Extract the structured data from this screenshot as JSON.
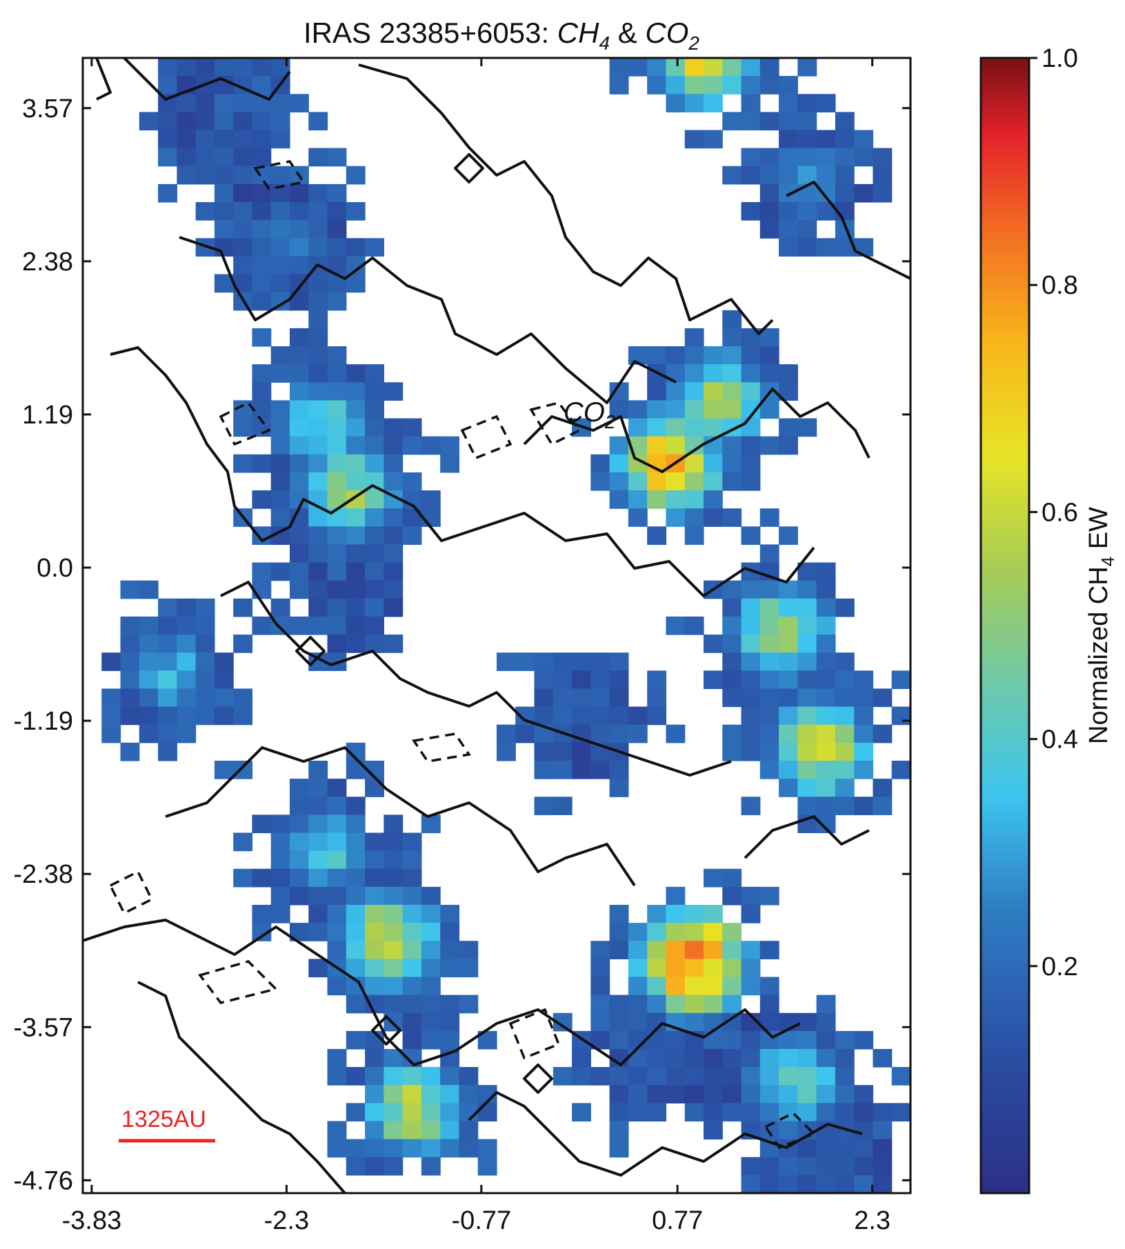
{
  "chart_data": {
    "type": "heatmap",
    "title_prefix": "IRAS 23385+6053: ",
    "title_species_1": "CH",
    "title_sub_1": "4",
    "title_join": " & ",
    "title_species_2": "CO",
    "title_sub_2": "2",
    "x_ticks": [
      "-3.83",
      "-2.3",
      "-0.77",
      "0.77",
      "2.3"
    ],
    "y_ticks": [
      "3.57",
      "2.38",
      "1.19",
      "0.0",
      "-1.19",
      "-2.38",
      "-3.57",
      "-4.76"
    ],
    "x_tick_values": [
      -3.83,
      -2.3,
      -0.77,
      0.77,
      2.3
    ],
    "y_tick_values": [
      3.57,
      2.38,
      1.19,
      0.0,
      -1.19,
      -2.38,
      -3.57,
      -4.76
    ],
    "xlim": [
      -3.9,
      2.6
    ],
    "ylim": [
      -4.86,
      3.96
    ],
    "colorbar": {
      "label_prefix": "Normalized CH",
      "label_sub": "4",
      "label_suffix": " EW",
      "ticks": [
        "0.2",
        "0.4",
        "0.6",
        "0.8",
        "1.0"
      ],
      "tick_values": [
        0.2,
        0.4,
        0.6,
        0.8,
        1.0
      ],
      "range": [
        0.0,
        1.0
      ],
      "colormap": "jet"
    },
    "contour_label_species": "CO",
    "contour_label_sub": "2",
    "contour_label_position": [
      0.2,
      1.19
    ],
    "scale_bar": {
      "label": "1325AU",
      "color": "#ee2222"
    },
    "grid": false,
    "legend": "none",
    "clusters": [
      {
        "x": -2.8,
        "y": 3.5,
        "peak": 0.15
      },
      {
        "x": -2.3,
        "y": 2.5,
        "peak": 0.25
      },
      {
        "x": -2.0,
        "y": 1.1,
        "peak": 0.45
      },
      {
        "x": -1.8,
        "y": 0.6,
        "peak": 0.55
      },
      {
        "x": -1.8,
        "y": -0.2,
        "peak": 0.12
      },
      {
        "x": -3.2,
        "y": -0.8,
        "peak": 0.35
      },
      {
        "x": 0.0,
        "y": -1.2,
        "peak": 0.1
      },
      {
        "x": -2.0,
        "y": -2.2,
        "peak": 0.4
      },
      {
        "x": -1.5,
        "y": -2.9,
        "peak": 0.65
      },
      {
        "x": -1.3,
        "y": -4.2,
        "peak": 0.6
      },
      {
        "x": 1.0,
        "y": 4.0,
        "peak": 0.75
      },
      {
        "x": 0.7,
        "y": 0.8,
        "peak": 0.8
      },
      {
        "x": 1.1,
        "y": 1.3,
        "peak": 0.55
      },
      {
        "x": 0.9,
        "y": -3.05,
        "peak": 0.97
      },
      {
        "x": 0.6,
        "y": -3.8,
        "peak": 0.2
      },
      {
        "x": 1.9,
        "y": -1.4,
        "peak": 0.62
      },
      {
        "x": 1.6,
        "y": -0.5,
        "peak": 0.55
      },
      {
        "x": 2.0,
        "y": -4.6,
        "peak": 0.2
      },
      {
        "x": 1.8,
        "y": 3.0,
        "peak": 0.3
      },
      {
        "x": 1.7,
        "y": -4.0,
        "peak": 0.45
      }
    ]
  }
}
